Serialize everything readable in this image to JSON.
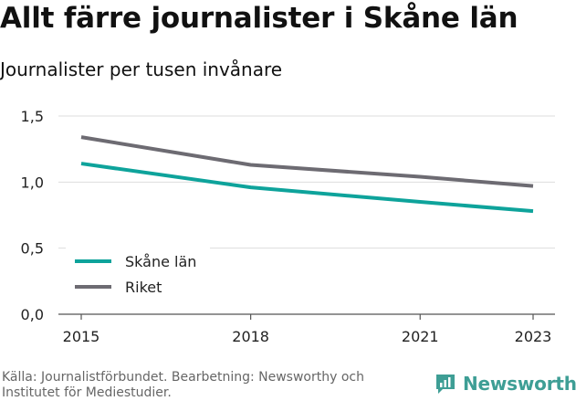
{
  "header": {
    "title": "Allt färre journalister i Skåne län",
    "subtitle": "Journalister per tusen invånare"
  },
  "footer": {
    "source": "Källa: Journalistförbundet. Bearbetning: Newsworthy och Institutet för Mediestudier.",
    "logo_text": "Newsworthy"
  },
  "colors": {
    "skane": "#0ea39b",
    "riket": "#6d6b72",
    "grid": "#dddddd",
    "axis": "#555555",
    "logo": "#3e9e95"
  },
  "icons": {
    "logo": "newsworthy-logo-icon"
  },
  "chart_data": {
    "type": "line",
    "title": "Allt färre journalister i Skåne län",
    "subtitle": "Journalister per tusen invånare",
    "x": [
      2015,
      2018,
      2021,
      2023
    ],
    "xticks": [
      "2015",
      "2018",
      "2021",
      "2023"
    ],
    "xlim": [
      2015,
      2023
    ],
    "ylim": [
      0,
      1.5
    ],
    "yticks": [
      "0,0",
      "0,5",
      "1,0",
      "1,5"
    ],
    "ytick_values": [
      0,
      0.5,
      1.0,
      1.5
    ],
    "grid": true,
    "legend": "bottom-left",
    "series": [
      {
        "name": "Skåne län",
        "values": [
          1.14,
          0.96,
          0.85,
          0.78
        ]
      },
      {
        "name": "Riket",
        "values": [
          1.34,
          1.13,
          1.04,
          0.97
        ]
      }
    ]
  }
}
